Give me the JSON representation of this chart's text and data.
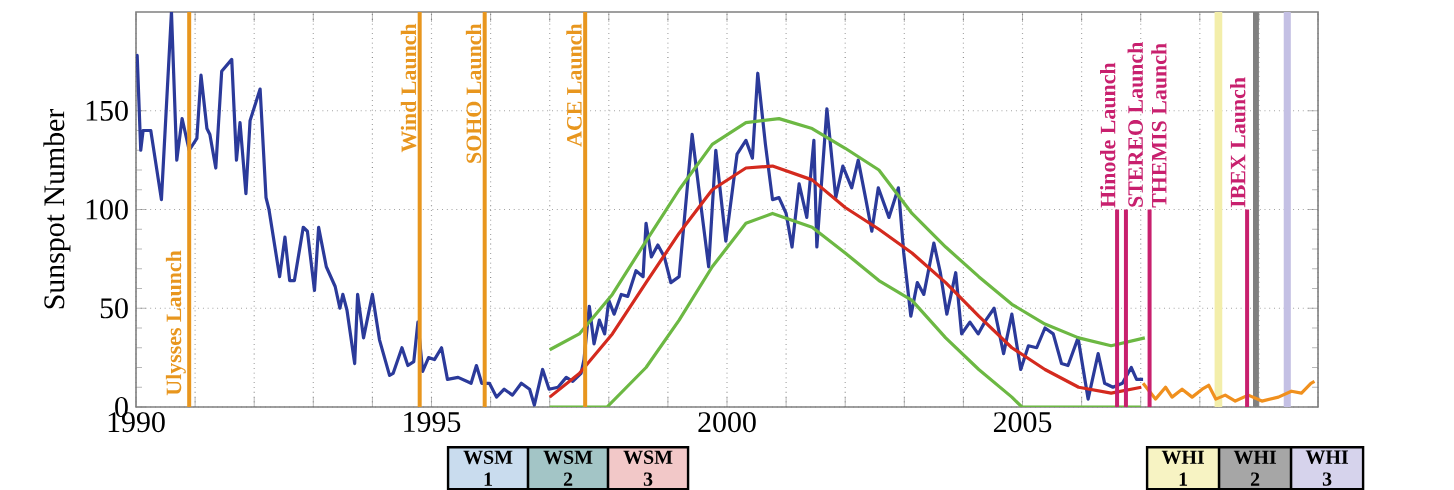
{
  "chart_data": {
    "type": "line",
    "ylabel": "Sunspot Number",
    "xlim": [
      1990,
      2010
    ],
    "ylim": [
      0,
      200
    ],
    "xticks": [
      1990,
      {
        "value": 1991,
        "label": null
      },
      {
        "value": 1992,
        "label": null
      },
      {
        "value": 1993,
        "label": null
      },
      {
        "value": 1994,
        "label": null
      },
      1995,
      {
        "value": 1996,
        "label": null
      },
      {
        "value": 1997,
        "label": null
      },
      {
        "value": 1998,
        "label": null
      },
      {
        "value": 1999,
        "label": null
      },
      2000,
      {
        "value": 2001,
        "label": null
      },
      {
        "value": 2002,
        "label": null
      },
      {
        "value": 2003,
        "label": null
      },
      {
        "value": 2004,
        "label": null
      },
      2005,
      {
        "value": 2006,
        "label": null
      },
      {
        "value": 2007,
        "label": null
      },
      {
        "value": 2008,
        "label": null
      },
      {
        "value": 2009,
        "label": null
      },
      {
        "value": 2010,
        "label": null
      }
    ],
    "yticks": [
      0,
      50,
      100,
      150
    ],
    "grid": true,
    "marker": "none",
    "line_style": "solid",
    "series": [
      {
        "color": "#2b3a9a",
        "x": [
          1990.0,
          1990.02,
          1990.08,
          1990.12,
          1990.25,
          1990.43,
          1990.6,
          1990.69,
          1990.78,
          1990.9,
          1991.03,
          1991.1,
          1991.2,
          1991.25,
          1991.35,
          1991.45,
          1991.62,
          1991.7,
          1991.76,
          1991.86,
          1991.93,
          1992.1,
          1992.2,
          1992.25,
          1992.43,
          1992.52,
          1992.6,
          1992.68,
          1992.83,
          1992.9,
          1993.02,
          1993.09,
          1993.22,
          1993.37,
          1993.45,
          1993.5,
          1993.57,
          1993.7,
          1993.75,
          1993.85,
          1994.0,
          1994.12,
          1994.29,
          1994.35,
          1994.5,
          1994.6,
          1994.7,
          1994.77,
          1994.85,
          1994.95,
          1995.05,
          1995.17,
          1995.27,
          1995.45,
          1995.67,
          1995.76,
          1995.85,
          1995.98,
          1996.1,
          1996.23,
          1996.37,
          1996.52,
          1996.66,
          1996.74,
          1996.88,
          1996.99,
          1997.14,
          1997.28,
          1997.39,
          1997.53,
          1997.58,
          1997.67,
          1997.75,
          1997.84,
          1997.93,
          1998.0,
          1998.09,
          1998.21,
          1998.32,
          1998.46,
          1998.58,
          1998.63,
          1998.72,
          1998.83,
          1998.94,
          1999.05,
          1999.19,
          1999.41,
          1999.55,
          1999.69,
          1999.81,
          1999.98,
          2000.17,
          2000.32,
          2000.43,
          2000.52,
          2000.65,
          2000.77,
          2000.88,
          2001.0,
          2001.1,
          2001.22,
          2001.35,
          2001.47,
          2001.52,
          2001.69,
          2001.84,
          2001.96,
          2002.11,
          2002.22,
          2002.35,
          2002.45,
          2002.56,
          2002.74,
          2002.9,
          2002.99,
          2003.11,
          2003.22,
          2003.33,
          2003.5,
          2003.61,
          2003.72,
          2003.87,
          2003.97,
          2004.11,
          2004.25,
          2004.38,
          2004.52,
          2004.68,
          2004.82,
          2004.97,
          2005.1,
          2005.24,
          2005.38,
          2005.52,
          2005.66,
          2005.77,
          2005.94,
          2006.11,
          2006.28,
          2006.39,
          2006.53,
          2006.69,
          2006.84,
          2006.93,
          2007.04
        ],
        "values": [
          172,
          178,
          130,
          140,
          140,
          105,
          200,
          125,
          146,
          130,
          136,
          168,
          141,
          138,
          121,
          170,
          176,
          125,
          144,
          108,
          145,
          161,
          106,
          100,
          66,
          86,
          64,
          64,
          91,
          89,
          59,
          91,
          71,
          61,
          50,
          57,
          49,
          22,
          57,
          35,
          57,
          34,
          16,
          17,
          30,
          21,
          23,
          43,
          18,
          25,
          24,
          30,
          14,
          15,
          12,
          21,
          12,
          12,
          5,
          9,
          6,
          12,
          9,
          1,
          19,
          9,
          10,
          15,
          13,
          17,
          24,
          51,
          32,
          44,
          37,
          54,
          47,
          57,
          56,
          69,
          66,
          93,
          76,
          82,
          76,
          63,
          66,
          138,
          104,
          71,
          130,
          84,
          128,
          135,
          126,
          169,
          133,
          105,
          106,
          98,
          81,
          113,
          96,
          135,
          81,
          151,
          106,
          122,
          111,
          125,
          105,
          89,
          111,
          96,
          111,
          78,
          46,
          63,
          57,
          83,
          68,
          47,
          68,
          37,
          43,
          37,
          44,
          50,
          27,
          47,
          19,
          31,
          30,
          40,
          37,
          22,
          21,
          35,
          4,
          27,
          12,
          10,
          12,
          20,
          14,
          14
        ]
      },
      {
        "color": "#d42a1e",
        "x": [
          1997.0,
          1997.5,
          1998.06,
          1998.63,
          1999.19,
          1999.75,
          2000.32,
          2000.77,
          2001.44,
          2002.0,
          2002.57,
          2003.13,
          2003.7,
          2004.26,
          2004.82,
          2005.38,
          2005.95,
          2006.5,
          2007.01
        ],
        "values": [
          5,
          17,
          37,
          63,
          88,
          110,
          121,
          122,
          115,
          101,
          90,
          78,
          63,
          46,
          30,
          19,
          10,
          7,
          10
        ]
      },
      {
        "color": "#6cb843",
        "x": [
          1997.0,
          1997.5,
          1998.06,
          1998.63,
          1999.19,
          1999.75,
          2000.32,
          2000.88,
          2001.44,
          2002.0,
          2002.57,
          2003.13,
          2003.7,
          2004.26,
          2004.82,
          2005.38,
          2005.95,
          2006.5,
          2007.07
        ],
        "values": [
          29,
          37,
          57,
          84,
          110,
          133,
          144,
          146,
          141,
          131,
          120,
          98,
          81,
          66,
          52,
          42,
          35,
          31,
          35
        ]
      },
      {
        "color": "#6cb843",
        "x": [
          1997.0,
          1997.97,
          1998.63,
          1999.19,
          1999.75,
          2000.32,
          2000.77,
          2001.44,
          2002.0,
          2002.57,
          2003.13,
          2003.7,
          2004.26,
          2004.82,
          2004.99,
          2007.0
        ],
        "values": [
          0,
          0,
          20,
          44,
          71,
          93,
          98,
          91,
          78,
          64,
          54,
          35,
          19,
          5,
          0,
          0
        ]
      },
      {
        "color": "#f0901e",
        "x": [
          2007.04,
          2007.25,
          2007.42,
          2007.53,
          2007.7,
          2007.87,
          2008.04,
          2008.15,
          2008.27,
          2008.43,
          2008.6,
          2008.82,
          2009.05,
          2009.33,
          2009.55,
          2009.72,
          2009.88,
          2009.94
        ],
        "values": [
          12,
          4,
          10,
          5,
          9,
          5,
          9,
          11,
          4,
          6,
          3,
          6,
          3,
          5,
          8,
          7,
          12,
          13
        ]
      }
    ],
    "ref_lines": [
      {
        "axis": "x",
        "value": 1990.9,
        "label": "Ulysses Launch",
        "color": "#e8961e"
      },
      {
        "axis": "x",
        "value": 1994.8,
        "label": "Wind Launch",
        "color": "#e8961e"
      },
      {
        "axis": "x",
        "value": 1995.9,
        "label": "SOHO Launch",
        "color": "#e8961e"
      },
      {
        "axis": "x",
        "value": 1997.6,
        "label": "ACE Launch",
        "color": "#e8961e"
      },
      {
        "axis": "x",
        "value": 2006.6,
        "label": "Hinode Launch",
        "color": "#c8206e"
      },
      {
        "axis": "x",
        "value": 2006.75,
        "label": "STEREO Launch",
        "color": "#c8206e"
      },
      {
        "axis": "x",
        "value": 2007.15,
        "label": "THEMIS Launch",
        "color": "#c8206e"
      },
      {
        "axis": "x",
        "value": 2008.8,
        "label": "IBEX Launch",
        "color": "#c8206e"
      }
    ],
    "bands": [
      {
        "axis": "x",
        "from": 2008.25,
        "to": 2008.38,
        "label": "WHI 1",
        "color": "#f3eeaa"
      },
      {
        "axis": "x",
        "from": 2008.9,
        "to": 2009.0,
        "label": "WHI 2",
        "color": "#808080"
      },
      {
        "axis": "x",
        "from": 2009.42,
        "to": 2009.54,
        "label": "WHI 3",
        "color": "#c4c0e4"
      }
    ],
    "annotations": [
      "WSM 1",
      "WSM 2",
      "WSM 3"
    ]
  }
}
